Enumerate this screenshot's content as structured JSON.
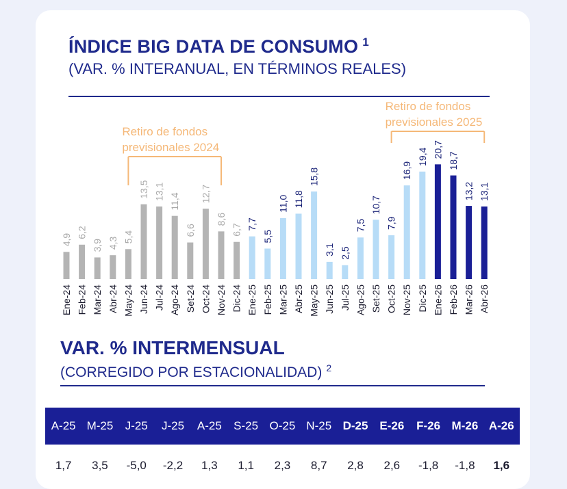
{
  "header": {
    "title": "ÍNDICE BIG DATA DE CONSUMO",
    "title_note": "1",
    "subtitle": "(VAR. % INTERANUAL, EN TÉRMINOS REALES)"
  },
  "chart_data": {
    "type": "bar",
    "categories": [
      "Ene-24",
      "Feb-24",
      "Mar-24",
      "Abr-24",
      "May-24",
      "Jun-24",
      "Jul-24",
      "Ago-24",
      "Set-24",
      "Oct-24",
      "Nov-24",
      "Dic-24",
      "Ene-25",
      "Feb-25",
      "Mar-25",
      "Abr-25",
      "May-25",
      "Jun-25",
      "Jul-25",
      "Ago-25",
      "Set-25",
      "Oct-25",
      "Nov-25",
      "Dic-25",
      "Ene-26",
      "Feb-26",
      "Mar-26",
      "Abr-26"
    ],
    "values": [
      4.9,
      6.2,
      3.9,
      4.3,
      5.4,
      13.5,
      13.1,
      11.4,
      6.6,
      12.7,
      8.6,
      6.7,
      7.7,
      5.5,
      11.0,
      11.8,
      15.8,
      3.1,
      2.5,
      7.5,
      10.7,
      7.9,
      16.9,
      19.4,
      20.7,
      18.7,
      13.2,
      13.1
    ],
    "value_labels": [
      "4,9",
      "6,2",
      "3,9",
      "4,3",
      "5,4",
      "13,5",
      "13,1",
      "11,4",
      "6,6",
      "12,7",
      "8,6",
      "6,7",
      "7,7",
      "5,5",
      "11,0",
      "11,8",
      "15,8",
      "3,1",
      "2,5",
      "7,5",
      "10,7",
      "7,9",
      "16,9",
      "19,4",
      "20,7",
      "18,7",
      "13,2",
      "13,1"
    ],
    "color_groups": [
      "gray",
      "gray",
      "gray",
      "gray",
      "gray",
      "gray",
      "gray",
      "gray",
      "gray",
      "gray",
      "gray",
      "gray",
      "light",
      "light",
      "light",
      "light",
      "light",
      "light",
      "light",
      "light",
      "light",
      "light",
      "light",
      "light",
      "dark",
      "dark",
      "dark",
      "dark"
    ],
    "colors": {
      "gray": "#b4b4b4",
      "light": "#b7dcf7",
      "dark": "#1a1f96",
      "label_gray": "#a8a8a8",
      "label_dark": "#1b2478",
      "annotation": "#f5b878"
    },
    "ylim": [
      0,
      22
    ],
    "grid": false,
    "annotations": [
      {
        "text_lines": [
          "Retiro de fondos",
          "previsionales 2024"
        ],
        "from": "May-24",
        "to": "Nov-24"
      },
      {
        "text_lines": [
          "Retiro de fondos",
          "previsionales 2025"
        ],
        "from": "Oct-25",
        "to": "Abr-26"
      }
    ]
  },
  "section2": {
    "title": "VAR. % INTERMENSUAL",
    "subtitle": "(CORREGIDO POR ESTACIONALIDAD)",
    "subtitle_note": "2"
  },
  "table": {
    "headers": [
      {
        "label": "A-25",
        "bold": false
      },
      {
        "label": "M-25",
        "bold": false
      },
      {
        "label": "J-25",
        "bold": false
      },
      {
        "label": "J-25",
        "bold": false
      },
      {
        "label": "A-25",
        "bold": false
      },
      {
        "label": "S-25",
        "bold": false
      },
      {
        "label": "O-25",
        "bold": false
      },
      {
        "label": "N-25",
        "bold": false
      },
      {
        "label": "D-25",
        "bold": true
      },
      {
        "label": "E-26",
        "bold": true
      },
      {
        "label": "F-26",
        "bold": true
      },
      {
        "label": "M-26",
        "bold": true
      },
      {
        "label": "A-26",
        "bold": true
      }
    ],
    "values": [
      {
        "label": "1,7",
        "bold": false
      },
      {
        "label": "3,5",
        "bold": false
      },
      {
        "label": "-5,0",
        "bold": false
      },
      {
        "label": "-2,2",
        "bold": false
      },
      {
        "label": "1,3",
        "bold": false
      },
      {
        "label": "1,1",
        "bold": false
      },
      {
        "label": "2,3",
        "bold": false
      },
      {
        "label": "8,7",
        "bold": false
      },
      {
        "label": "2,8",
        "bold": false
      },
      {
        "label": "2,6",
        "bold": false
      },
      {
        "label": "-1,8",
        "bold": false
      },
      {
        "label": "-1,8",
        "bold": false
      },
      {
        "label": "1,6",
        "bold": true
      }
    ]
  }
}
